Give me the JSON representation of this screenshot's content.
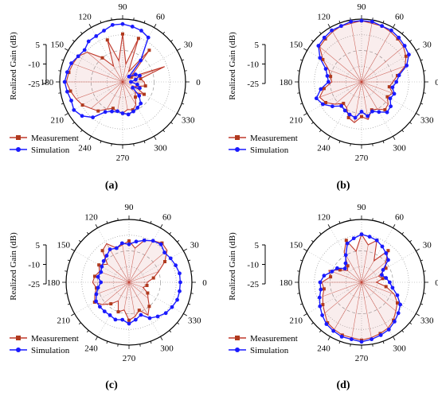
{
  "colors": {
    "measurement": "#c0392b",
    "measurement_marker": "#b03a1e",
    "simulation": "#1a1aff",
    "grid": "#999999",
    "axis": "#000000"
  },
  "common": {
    "radial_label": "Realized Gain (dB)",
    "radial_ticks": [
      "5",
      "-10",
      "-25"
    ],
    "angle_labels": [
      "90",
      "60",
      "30",
      "0",
      "330",
      "300",
      "270",
      "240",
      "210",
      "180",
      "150",
      "120"
    ],
    "legend": [
      "Measurement",
      "Simulation"
    ]
  },
  "chart_data": [
    {
      "panel_label": "(a)",
      "type": "polar-line",
      "r_axis": {
        "label": "Realized Gain (dB)",
        "range": [
          -25,
          5
        ],
        "ticks": [
          5,
          -10,
          -25
        ]
      },
      "theta_ticks_deg": [
        0,
        30,
        60,
        90,
        120,
        150,
        180,
        210,
        240,
        270,
        300,
        330
      ],
      "legend_placement": "bottom-left",
      "series": [
        {
          "name": "Simulation",
          "marker": "circle",
          "theta": [
            0,
            10,
            20,
            30,
            40,
            50,
            60,
            70,
            80,
            90,
            100,
            110,
            120,
            130,
            140,
            150,
            160,
            170,
            180,
            190,
            200,
            210,
            220,
            230,
            240,
            250,
            260,
            270,
            280,
            290,
            300,
            310,
            320,
            330,
            340,
            350
          ],
          "r": [
            -28,
            -25,
            -22,
            -24,
            -28,
            -16,
            -2,
            0,
            1,
            2,
            2,
            0,
            -1,
            -1,
            -3,
            -2,
            0,
            1,
            2,
            1,
            0,
            1,
            -1,
            -5,
            -12,
            -14,
            -15,
            -14,
            -13,
            -14,
            -15,
            -16,
            -20,
            -26,
            -22,
            -24
          ]
        },
        {
          "name": "Measurement",
          "marker": "square",
          "theta": [
            0,
            10,
            20,
            30,
            40,
            50,
            60,
            70,
            80,
            90,
            100,
            110,
            120,
            130,
            140,
            150,
            160,
            170,
            180,
            190,
            200,
            210,
            220,
            230,
            240,
            250,
            260,
            270,
            280,
            290,
            300,
            310,
            320,
            330,
            340,
            350
          ],
          "r": [
            -20,
            -22,
            -6,
            -27,
            -24,
            -8,
            -26,
            -5,
            -22,
            -4,
            -20,
            -6,
            -22,
            -14,
            -5,
            -2,
            -1,
            0,
            1,
            -1,
            -3,
            -5,
            -8,
            -10,
            -14,
            -16,
            -15,
            -14,
            -16,
            -15,
            -17,
            -21,
            -23,
            -18,
            -25,
            -19
          ]
        }
      ]
    },
    {
      "panel_label": "(b)",
      "type": "polar-line",
      "r_axis": {
        "label": "Realized Gain (dB)",
        "range": [
          -25,
          5
        ],
        "ticks": [
          5,
          -10,
          -25
        ]
      },
      "theta_ticks_deg": [
        0,
        30,
        60,
        90,
        120,
        150,
        180,
        210,
        240,
        270,
        300,
        330
      ],
      "legend_placement": "bottom-left",
      "series": [
        {
          "name": "Simulation",
          "marker": "circle",
          "theta": [
            0,
            10,
            20,
            30,
            40,
            50,
            60,
            70,
            80,
            90,
            100,
            110,
            120,
            130,
            140,
            150,
            160,
            170,
            180,
            190,
            200,
            210,
            220,
            230,
            240,
            250,
            260,
            270,
            280,
            290,
            300,
            310,
            320,
            330,
            340,
            350
          ],
          "r": [
            -12,
            -10,
            -4,
            0,
            1,
            2,
            3,
            3,
            4,
            4,
            4,
            3,
            3,
            2,
            1,
            -4,
            -10,
            -12,
            -13,
            -8,
            -4,
            -6,
            -10,
            -14,
            -13,
            -12,
            -11,
            -15,
            -12,
            -14,
            -12,
            -9,
            -10,
            -13,
            -12,
            -14
          ]
        },
        {
          "name": "Measurement",
          "marker": "square",
          "theta": [
            0,
            10,
            20,
            30,
            40,
            50,
            60,
            70,
            80,
            90,
            100,
            110,
            120,
            130,
            140,
            150,
            160,
            170,
            180,
            190,
            200,
            210,
            220,
            230,
            240,
            250,
            260,
            270,
            280,
            290,
            300,
            310,
            320,
            330,
            340,
            350
          ],
          "r": [
            -14,
            -11,
            -5,
            -2,
            0,
            1,
            2,
            3,
            3,
            4,
            3,
            3,
            2,
            1,
            0,
            -6,
            -12,
            -14,
            -15,
            -10,
            -6,
            -8,
            -12,
            -16,
            -15,
            -10,
            -8,
            -12,
            -10,
            -15,
            -14,
            -11,
            -12,
            -15,
            -13,
            -16
          ]
        }
      ]
    },
    {
      "panel_label": "(c)",
      "type": "polar-line",
      "r_axis": {
        "label": "Realized Gain (dB)",
        "range": [
          -25,
          5
        ],
        "ticks": [
          5,
          -10,
          -25
        ]
      },
      "theta_ticks_deg": [
        0,
        30,
        60,
        90,
        120,
        150,
        180,
        210,
        240,
        270,
        300,
        330
      ],
      "legend_placement": "bottom-left",
      "series": [
        {
          "name": "Simulation",
          "marker": "circle",
          "theta": [
            0,
            10,
            20,
            30,
            40,
            50,
            60,
            70,
            80,
            90,
            100,
            110,
            120,
            130,
            140,
            150,
            160,
            170,
            180,
            190,
            200,
            210,
            220,
            230,
            240,
            250,
            260,
            270,
            280,
            290,
            300,
            310,
            320,
            330,
            340,
            350
          ],
          "r": [
            -2,
            -2,
            -3,
            -4,
            -5,
            -3,
            -4,
            -6,
            -8,
            -10,
            -9,
            -11,
            -10,
            -12,
            -13,
            -14,
            -15,
            -14,
            -16,
            -14,
            -12,
            -10,
            -10,
            -10,
            -10,
            -9,
            -10,
            -8,
            -10,
            -12,
            -8,
            -6,
            -4,
            -3,
            -2,
            -2
          ]
        },
        {
          "name": "Measurement",
          "marker": "square",
          "theta": [
            0,
            10,
            20,
            30,
            40,
            50,
            60,
            70,
            80,
            90,
            100,
            110,
            120,
            130,
            140,
            150,
            160,
            170,
            180,
            190,
            200,
            210,
            220,
            230,
            240,
            250,
            260,
            270,
            280,
            290,
            300,
            310,
            320,
            330,
            340,
            350
          ],
          "r": [
            -22,
            -18,
            -14,
            -8,
            -3,
            -2,
            -4,
            -6,
            -12,
            -8,
            -10,
            -11,
            -6,
            -8,
            -16,
            -12,
            -14,
            -12,
            -11,
            -13,
            -11,
            -9,
            -12,
            -16,
            -20,
            -14,
            -16,
            -10,
            -12,
            -15,
            -10,
            -14,
            -18,
            -20,
            -24,
            -22
          ]
        }
      ]
    },
    {
      "panel_label": "(d)",
      "type": "polar-line",
      "r_axis": {
        "label": "Realized Gain (dB)",
        "range": [
          -25,
          5
        ],
        "ticks": [
          5,
          -10,
          -25
        ]
      },
      "theta_ticks_deg": [
        0,
        30,
        60,
        90,
        120,
        150,
        180,
        210,
        240,
        270,
        300,
        330
      ],
      "legend_placement": "bottom-left",
      "series": [
        {
          "name": "Simulation",
          "marker": "circle",
          "theta": [
            0,
            10,
            20,
            30,
            40,
            50,
            60,
            70,
            80,
            90,
            100,
            110,
            120,
            130,
            140,
            150,
            160,
            170,
            180,
            190,
            200,
            210,
            220,
            230,
            240,
            250,
            260,
            270,
            280,
            290,
            300,
            310,
            320,
            330,
            340,
            350
          ],
          "r": [
            -16,
            -18,
            -20,
            -18,
            -12,
            -10,
            -8,
            -6,
            -5,
            -4,
            -6,
            -8,
            -14,
            -18,
            -20,
            -16,
            -14,
            -10,
            -8,
            -8,
            -6,
            -4,
            -2,
            0,
            1,
            2,
            2,
            3,
            2,
            1,
            0,
            -2,
            -4,
            -6,
            -10,
            -14
          ]
        },
        {
          "name": "Measurement",
          "marker": "square",
          "theta": [
            0,
            10,
            20,
            30,
            40,
            50,
            60,
            70,
            80,
            90,
            100,
            110,
            120,
            130,
            140,
            150,
            160,
            170,
            180,
            190,
            200,
            210,
            220,
            230,
            240,
            250,
            260,
            270,
            280,
            290,
            300,
            310,
            320,
            330,
            340,
            350
          ],
          "r": [
            -24,
            -20,
            -22,
            -16,
            -14,
            -8,
            -18,
            -6,
            -10,
            -4,
            -14,
            -6,
            -12,
            -20,
            -22,
            -18,
            -12,
            -14,
            -9,
            -10,
            -8,
            -6,
            -4,
            -1,
            0,
            1,
            1,
            2,
            1,
            0,
            -1,
            -3,
            -6,
            -8,
            -12,
            -18
          ]
        }
      ]
    }
  ]
}
